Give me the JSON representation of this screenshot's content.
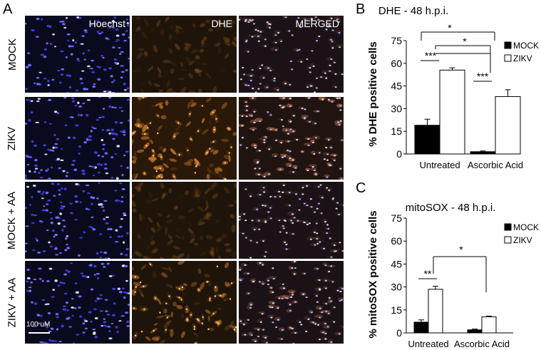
{
  "panel_a": {
    "letter": "A",
    "columns": [
      "Hoechst",
      "DHE",
      "MERGED"
    ],
    "rows": [
      "MOCK",
      "ZIKV",
      "MOCK + AA",
      "ZIKV + AA"
    ],
    "scale_bar": "100 uM"
  },
  "panel_b_letter": "B",
  "panel_c_letter": "C",
  "chart_data": [
    {
      "type": "bar",
      "title": "DHE - 48 h.p.i.",
      "xlabel": "",
      "ylabel": "% DHE positive cells",
      "ylim": [
        0,
        75
      ],
      "yticks": [
        "0",
        "15",
        "30",
        "45",
        "60",
        "75"
      ],
      "categories": [
        "Untreated",
        "Ascorbic Acid"
      ],
      "series": [
        {
          "name": "MOCK",
          "values": [
            19,
            1.5
          ],
          "errors": [
            4,
            0.5
          ],
          "color": "#000000"
        },
        {
          "name": "ZIKV",
          "values": [
            55.5,
            38
          ],
          "errors": [
            1.5,
            4.5
          ],
          "color": "#ffffff"
        }
      ],
      "annotations": [
        "***",
        "***",
        "*",
        "*"
      ],
      "legend": "top-right"
    },
    {
      "type": "bar",
      "title": "mitoSOX - 48 h.p.i.",
      "xlabel": "",
      "ylabel": "% mitoSOX positive cells",
      "ylim": [
        0,
        75
      ],
      "yticks": [
        "0",
        "15",
        "30",
        "45",
        "60",
        "75"
      ],
      "categories": [
        "Untreated",
        "Ascorbic Acid"
      ],
      "series": [
        {
          "name": "MOCK",
          "values": [
            7,
            2
          ],
          "errors": [
            1.5,
            0.5
          ],
          "color": "#000000"
        },
        {
          "name": "ZIKV",
          "values": [
            28.5,
            10.5
          ],
          "errors": [
            2,
            0.5
          ],
          "color": "#ffffff"
        }
      ],
      "annotations": [
        "**",
        "*"
      ],
      "legend": "top-right"
    }
  ]
}
